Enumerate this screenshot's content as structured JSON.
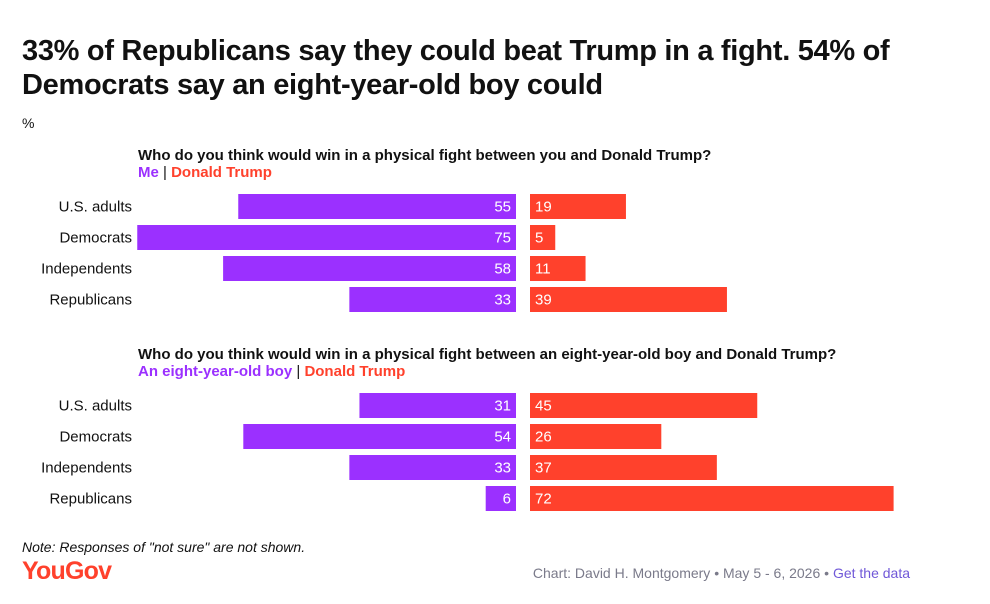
{
  "title": "33% of Republicans say they could beat Trump in a fight. 54% of Democrats say an eight-year-old boy could",
  "unit": "%",
  "colors": {
    "left": "#9b30ff",
    "right": "#ff412c"
  },
  "chart_data": [
    {
      "type": "bar",
      "title": "Who do you think would win in a physical fight between you and Donald Trump?",
      "categories": [
        "U.S. adults",
        "Democrats",
        "Independents",
        "Republicans"
      ],
      "series": [
        {
          "name": "Me",
          "values": [
            55,
            75,
            58,
            33
          ]
        },
        {
          "name": "Donald Trump",
          "values": [
            19,
            5,
            11,
            39
          ]
        }
      ]
    },
    {
      "type": "bar",
      "title": "Who do you think would win in a physical fight between an eight-year-old boy and Donald Trump?",
      "categories": [
        "U.S. adults",
        "Democrats",
        "Independents",
        "Republicans"
      ],
      "series": [
        {
          "name": "An eight-year-old boy",
          "values": [
            31,
            54,
            33,
            6
          ]
        },
        {
          "name": "Donald Trump",
          "values": [
            45,
            26,
            37,
            72
          ]
        }
      ]
    }
  ],
  "note": "Note: Responses of \"not sure\" are not shown.",
  "logo": "YouGov",
  "credit": {
    "text": "Chart: David H. Montgomery • May 5 - 6, 2026 •",
    "link": "Get the data"
  }
}
